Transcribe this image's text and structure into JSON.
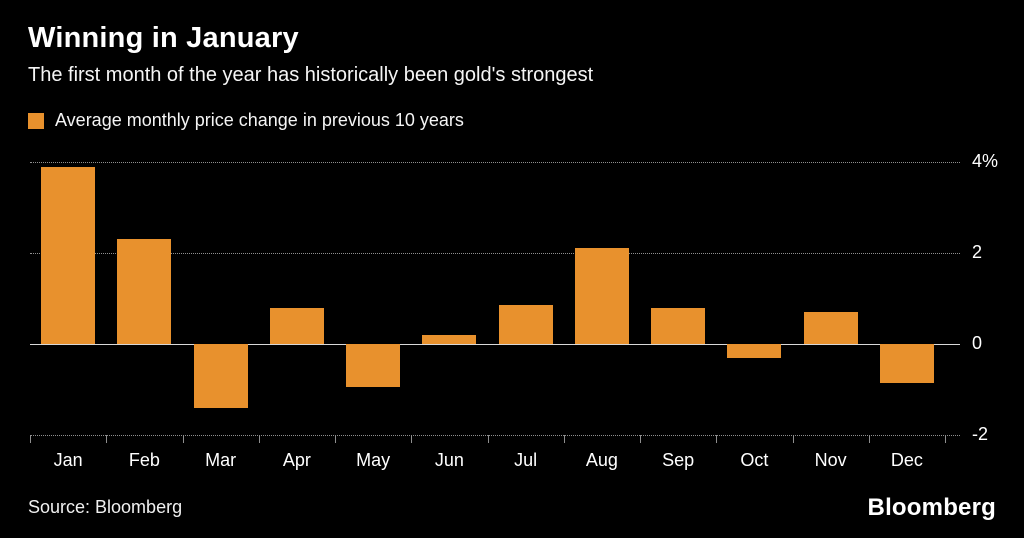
{
  "background_color": "#000000",
  "accent_color": "#E8912D",
  "header": {
    "title": "Winning in January",
    "subtitle": "The first month of the year has historically been gold's strongest"
  },
  "legend": {
    "label": "Average monthly price change in previous 10 years",
    "swatch_color": "#E8912D"
  },
  "chart_data": {
    "type": "bar",
    "title": "Winning in January",
    "categories": [
      "Jan",
      "Feb",
      "Mar",
      "Apr",
      "May",
      "Jun",
      "Jul",
      "Aug",
      "Sep",
      "Oct",
      "Nov",
      "Dec"
    ],
    "values": [
      3.9,
      2.3,
      -1.4,
      0.8,
      -0.95,
      0.2,
      0.85,
      2.1,
      0.8,
      -0.3,
      0.7,
      -0.85
    ],
    "xlabel": "",
    "ylabel": "",
    "ylim": [
      -2,
      4
    ],
    "yticks": [
      4,
      2,
      0,
      -2
    ],
    "ytick_labels": [
      "4%",
      "2",
      "0",
      "-2"
    ],
    "yaxis_side": "right",
    "grid": "dotted horizontal lines, solid zero baseline",
    "bar_color": "#E8912D",
    "legend_position": "top-left"
  },
  "footer": {
    "source": "Source: Bloomberg",
    "brand": "Bloomberg"
  }
}
